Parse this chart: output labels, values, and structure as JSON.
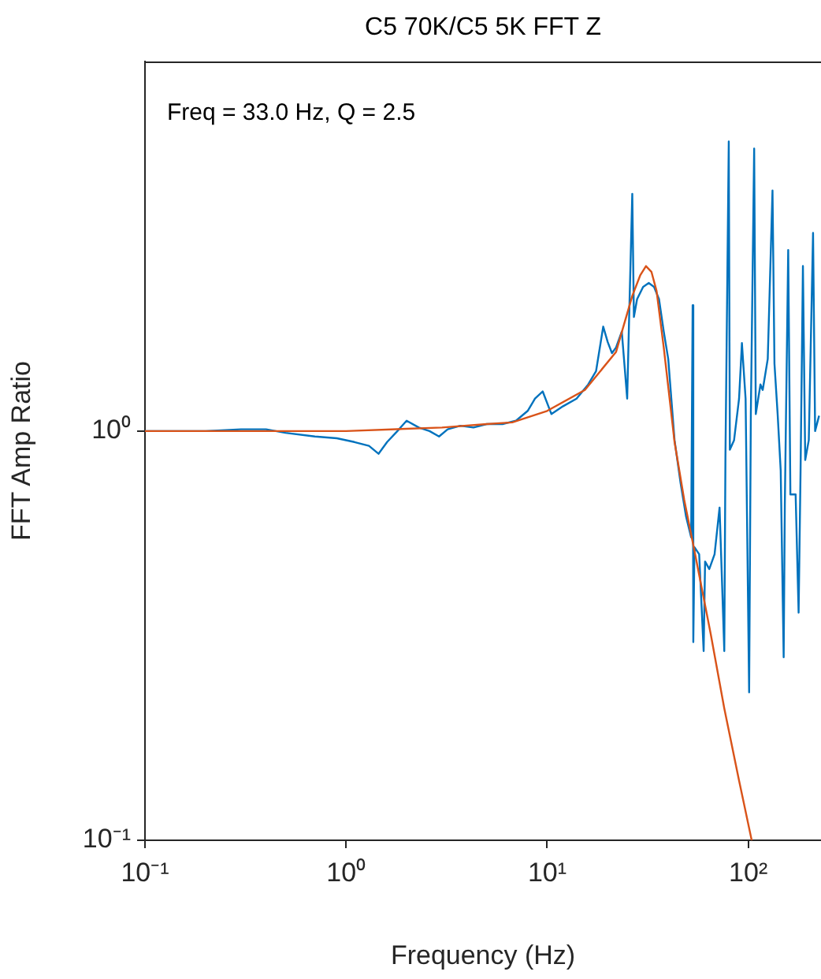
{
  "chart_data": {
    "type": "line",
    "title": "C5 70K/C5 5K FFT Z",
    "xlabel": "Frequency (Hz)",
    "ylabel": "FFT Amp Ratio",
    "log": "xy",
    "grid": false,
    "legend": false,
    "marker": "none",
    "xlim": [
      0.1,
      230
    ],
    "ylim": [
      0.1,
      8
    ],
    "xticks": [
      {
        "value": 0.1,
        "label": "10⁻¹"
      },
      {
        "value": 1,
        "label": "10⁰"
      },
      {
        "value": 10,
        "label": "10¹"
      },
      {
        "value": 100,
        "label": "10²"
      }
    ],
    "yticks": [
      {
        "value": 0.1,
        "label": "10⁻¹"
      },
      {
        "value": 1,
        "label": "10⁰"
      }
    ],
    "annotations": [
      "Freq = 33.0 Hz, Q = 2.5"
    ],
    "series": [
      {
        "color": "#0072bd",
        "x": [
          0.1,
          0.15,
          0.2,
          0.3,
          0.4,
          0.5,
          0.7,
          0.9,
          1.1,
          1.3,
          1.45,
          1.6,
          1.8,
          2.0,
          2.3,
          2.6,
          2.9,
          3.2,
          3.7,
          4.3,
          5,
          6,
          7,
          8,
          8.7,
          9.5,
          10.5,
          12,
          14,
          16,
          17.5,
          19,
          20,
          21,
          22,
          23.5,
          25,
          25.5,
          26.5,
          27,
          28,
          30,
          32,
          34,
          36,
          38,
          40,
          43,
          46,
          49,
          52,
          52.9,
          53.3,
          54,
          57,
          60,
          61,
          64,
          68,
          72,
          76,
          77,
          80,
          81,
          85,
          90,
          93,
          97,
          101,
          103,
          107,
          109,
          115,
          118,
          125,
          132,
          135,
          140,
          145,
          150,
          152,
          158,
          162,
          172,
          178,
          182,
          187,
          192,
          200,
          210,
          215,
          225
        ],
        "values": [
          1.0,
          1.0,
          1.0,
          1.01,
          1.01,
          0.99,
          0.97,
          0.96,
          0.94,
          0.92,
          0.88,
          0.94,
          1.0,
          1.06,
          1.02,
          1.0,
          0.97,
          1.01,
          1.03,
          1.02,
          1.04,
          1.04,
          1.06,
          1.12,
          1.2,
          1.25,
          1.1,
          1.15,
          1.2,
          1.3,
          1.4,
          1.8,
          1.65,
          1.55,
          1.6,
          1.75,
          1.2,
          1.8,
          3.8,
          1.9,
          2.1,
          2.25,
          2.3,
          2.25,
          2.1,
          1.75,
          1.5,
          0.95,
          0.75,
          0.62,
          0.55,
          2.03,
          0.305,
          0.52,
          0.5,
          0.29,
          0.48,
          0.46,
          0.5,
          0.65,
          0.29,
          0.86,
          5.1,
          0.9,
          0.95,
          1.2,
          1.64,
          1.2,
          0.23,
          1.1,
          4.9,
          1.1,
          1.3,
          1.26,
          1.5,
          3.87,
          1.46,
          1.1,
          0.8,
          0.28,
          0.66,
          2.77,
          0.7,
          0.7,
          0.36,
          0.8,
          2.53,
          0.85,
          0.95,
          3.05,
          1.0,
          1.09
        ]
      },
      {
        "color": "#d95319",
        "x": [
          0.1,
          1,
          3,
          5,
          6.7,
          10,
          15.4,
          22,
          26.5,
          29,
          31,
          33,
          35,
          38,
          43,
          48,
          54,
          65,
          76,
          90,
          104
        ],
        "values": [
          1.0,
          1.0,
          1.02,
          1.04,
          1.05,
          1.12,
          1.26,
          1.56,
          2.14,
          2.4,
          2.53,
          2.45,
          2.2,
          1.6,
          0.94,
          0.68,
          0.51,
          0.32,
          0.21,
          0.14,
          0.1
        ]
      }
    ]
  }
}
